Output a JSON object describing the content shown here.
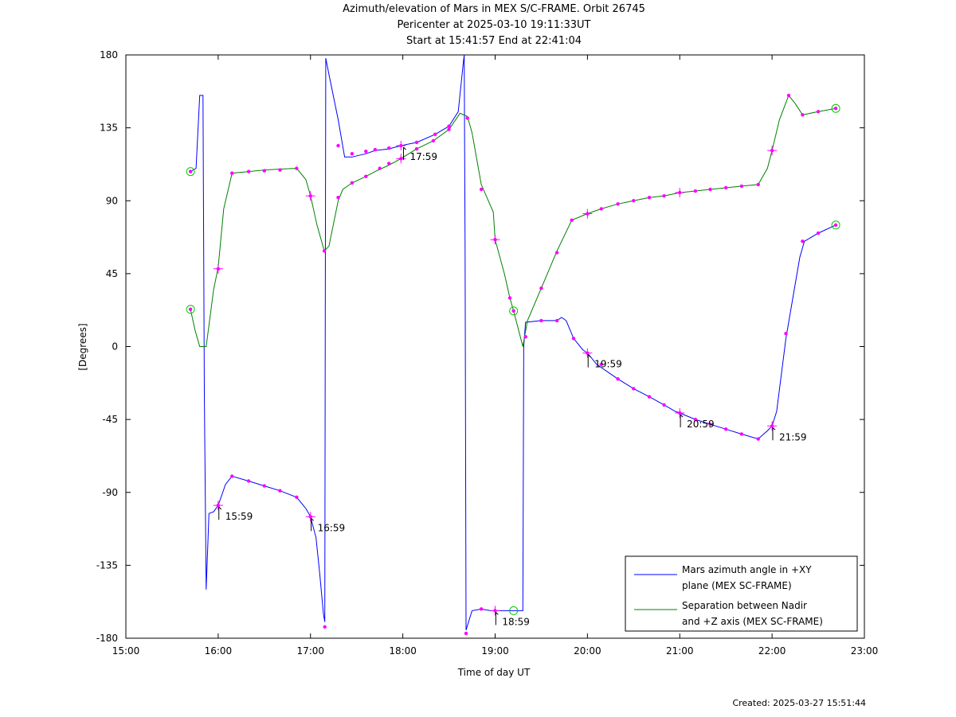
{
  "chart_data": {
    "type": "line",
    "title_lines": [
      "Azimuth/elevation of Mars in MEX S/C-FRAME.  Orbit 26745",
      "Pericenter at 2025-03-10 19:11:33UT",
      "Start at 15:41:57 End at 22:41:04"
    ],
    "xlabel": "Time of day UT",
    "ylabel": "[Degrees]",
    "xlim": [
      15.0,
      23.0
    ],
    "ylim": [
      -180,
      180
    ],
    "x_ticks": [
      "15:00",
      "16:00",
      "17:00",
      "18:00",
      "19:00",
      "20:00",
      "21:00",
      "22:00",
      "23:00"
    ],
    "y_ticks": [
      180,
      135,
      90,
      45,
      0,
      -45,
      -90,
      -135,
      -180
    ],
    "grid": false,
    "legend_position": "bottom-right",
    "series": [
      {
        "name": "Mars azimuth angle in +XY plane (MEX SC-FRAME)",
        "legend_lines": [
          "Mars azimuth angle in +XY",
          "plane (MEX SC-FRAME)"
        ],
        "color": "#0000ff",
        "points": [
          [
            15.7,
            108
          ],
          [
            15.76,
            110
          ],
          [
            15.8,
            155
          ],
          [
            15.835,
            155
          ],
          [
            15.85,
            -30
          ],
          [
            15.87,
            -150
          ],
          [
            15.9,
            -103
          ],
          [
            15.95,
            -102
          ],
          [
            16.0,
            -98
          ],
          [
            16.08,
            -85
          ],
          [
            16.15,
            -80
          ],
          [
            16.33,
            -83
          ],
          [
            16.5,
            -86
          ],
          [
            16.67,
            -89
          ],
          [
            16.85,
            -93
          ],
          [
            16.95,
            -100
          ],
          [
            17.0,
            -105
          ],
          [
            17.06,
            -118
          ],
          [
            17.1,
            -140
          ],
          [
            17.14,
            -165
          ],
          [
            17.155,
            -170
          ],
          [
            17.16,
            20
          ],
          [
            17.165,
            178
          ],
          [
            17.2,
            168
          ],
          [
            17.3,
            140
          ],
          [
            17.37,
            117
          ],
          [
            17.45,
            117
          ],
          [
            17.6,
            119
          ],
          [
            17.7,
            121
          ],
          [
            17.85,
            122
          ],
          [
            17.98,
            124
          ],
          [
            18.15,
            126
          ],
          [
            18.35,
            131
          ],
          [
            18.5,
            136
          ],
          [
            18.6,
            145
          ],
          [
            18.655,
            175
          ],
          [
            18.665,
            180
          ],
          [
            18.675,
            60
          ],
          [
            18.685,
            -175
          ],
          [
            18.75,
            -163
          ],
          [
            18.85,
            -162
          ],
          [
            18.95,
            -163
          ],
          [
            19.0,
            -163
          ],
          [
            19.2,
            -163
          ],
          [
            19.3,
            -163
          ],
          [
            19.31,
            0
          ],
          [
            19.33,
            15
          ],
          [
            19.5,
            16
          ],
          [
            19.67,
            16
          ],
          [
            19.72,
            18
          ],
          [
            19.77,
            16
          ],
          [
            19.85,
            5
          ],
          [
            19.95,
            -2
          ],
          [
            20.0,
            -4
          ],
          [
            20.1,
            -11
          ],
          [
            20.33,
            -20
          ],
          [
            20.5,
            -26
          ],
          [
            20.67,
            -31
          ],
          [
            20.83,
            -36
          ],
          [
            20.95,
            -40
          ],
          [
            21.0,
            -41
          ],
          [
            21.17,
            -45
          ],
          [
            21.33,
            -48
          ],
          [
            21.5,
            -51
          ],
          [
            21.67,
            -54
          ],
          [
            21.85,
            -57
          ],
          [
            21.95,
            -52
          ],
          [
            22.0,
            -49
          ],
          [
            22.05,
            -40
          ],
          [
            22.15,
            5
          ],
          [
            22.3,
            55
          ],
          [
            22.35,
            65
          ],
          [
            22.5,
            70
          ],
          [
            22.69,
            75
          ]
        ]
      },
      {
        "name": "Separation between Nadir and +Z axis (MEX SC-FRAME)",
        "legend_lines": [
          "Separation between Nadir",
          "and +Z axis (MEX SC-FRAME)"
        ],
        "color": "#008000",
        "points": [
          [
            15.7,
            23
          ],
          [
            15.75,
            10
          ],
          [
            15.8,
            0
          ],
          [
            15.87,
            0
          ],
          [
            15.95,
            35
          ],
          [
            16.0,
            49
          ],
          [
            16.06,
            85
          ],
          [
            16.15,
            107
          ],
          [
            16.33,
            108
          ],
          [
            16.5,
            109
          ],
          [
            16.67,
            109.5
          ],
          [
            16.85,
            110
          ],
          [
            16.95,
            103
          ],
          [
            17.0,
            93
          ],
          [
            17.07,
            75
          ],
          [
            17.15,
            59
          ],
          [
            17.2,
            62
          ],
          [
            17.3,
            90
          ],
          [
            17.35,
            97
          ],
          [
            17.45,
            101
          ],
          [
            17.6,
            105
          ],
          [
            17.7,
            108
          ],
          [
            17.85,
            112
          ],
          [
            17.98,
            116
          ],
          [
            18.15,
            122
          ],
          [
            18.33,
            127
          ],
          [
            18.5,
            134
          ],
          [
            18.62,
            144
          ],
          [
            18.7,
            142
          ],
          [
            18.75,
            132
          ],
          [
            18.85,
            100
          ],
          [
            18.98,
            83
          ],
          [
            19.0,
            66
          ],
          [
            19.1,
            45
          ],
          [
            19.16,
            30
          ],
          [
            19.2,
            22
          ],
          [
            19.3,
            0
          ],
          [
            19.35,
            16
          ],
          [
            19.5,
            36
          ],
          [
            19.67,
            59
          ],
          [
            19.83,
            78
          ],
          [
            20.0,
            82
          ],
          [
            20.15,
            85
          ],
          [
            20.33,
            88
          ],
          [
            20.5,
            90
          ],
          [
            20.67,
            92
          ],
          [
            20.83,
            93
          ],
          [
            21.0,
            95
          ],
          [
            21.17,
            96
          ],
          [
            21.33,
            97
          ],
          [
            21.5,
            98
          ],
          [
            21.67,
            99
          ],
          [
            21.85,
            100
          ],
          [
            21.95,
            110
          ],
          [
            22.0,
            121
          ],
          [
            22.08,
            140
          ],
          [
            22.18,
            155
          ],
          [
            22.25,
            150
          ],
          [
            22.33,
            143
          ],
          [
            22.5,
            145
          ],
          [
            22.69,
            147
          ]
        ]
      }
    ],
    "markers": [
      [
        15.7,
        108
      ],
      [
        16.0,
        -98
      ],
      [
        16.15,
        -80
      ],
      [
        16.33,
        -83
      ],
      [
        16.5,
        -86
      ],
      [
        16.67,
        -89
      ],
      [
        16.85,
        -93
      ],
      [
        17.0,
        -105
      ],
      [
        17.155,
        -173
      ],
      [
        17.3,
        124
      ],
      [
        17.45,
        119
      ],
      [
        17.6,
        120.5
      ],
      [
        17.7,
        121.5
      ],
      [
        17.85,
        122.5
      ],
      [
        17.98,
        124
      ],
      [
        18.15,
        126
      ],
      [
        18.35,
        131
      ],
      [
        18.5,
        136
      ],
      [
        18.685,
        -177
      ],
      [
        18.85,
        -162
      ],
      [
        19.0,
        -163
      ],
      [
        19.33,
        6
      ],
      [
        19.5,
        16
      ],
      [
        19.67,
        16
      ],
      [
        19.85,
        5
      ],
      [
        20.0,
        -4
      ],
      [
        20.15,
        -11
      ],
      [
        20.33,
        -20
      ],
      [
        20.5,
        -26
      ],
      [
        20.67,
        -31
      ],
      [
        20.83,
        -36
      ],
      [
        21.0,
        -41
      ],
      [
        21.17,
        -45
      ],
      [
        21.33,
        -48
      ],
      [
        21.5,
        -51
      ],
      [
        21.67,
        -54
      ],
      [
        21.85,
        -57
      ],
      [
        22.0,
        -49
      ],
      [
        22.15,
        8
      ],
      [
        22.33,
        65
      ],
      [
        22.5,
        70
      ],
      [
        22.69,
        75
      ],
      [
        15.7,
        23
      ],
      [
        16.0,
        48
      ],
      [
        16.15,
        107
      ],
      [
        16.33,
        108
      ],
      [
        16.5,
        108.5
      ],
      [
        16.67,
        109
      ],
      [
        16.85,
        110
      ],
      [
        17.0,
        93
      ],
      [
        17.15,
        59
      ],
      [
        17.3,
        92
      ],
      [
        17.45,
        101
      ],
      [
        17.6,
        105
      ],
      [
        17.75,
        110
      ],
      [
        17.85,
        113
      ],
      [
        17.98,
        116
      ],
      [
        18.15,
        122
      ],
      [
        18.33,
        127
      ],
      [
        18.5,
        134
      ],
      [
        18.7,
        141
      ],
      [
        18.85,
        97
      ],
      [
        19.0,
        66
      ],
      [
        19.16,
        30
      ],
      [
        19.2,
        22
      ],
      [
        19.5,
        36
      ],
      [
        19.67,
        58
      ],
      [
        19.83,
        78
      ],
      [
        20.0,
        82
      ],
      [
        20.15,
        85
      ],
      [
        20.33,
        88
      ],
      [
        20.5,
        90
      ],
      [
        20.67,
        92
      ],
      [
        20.83,
        93
      ],
      [
        21.0,
        95
      ],
      [
        21.17,
        96
      ],
      [
        21.33,
        97
      ],
      [
        21.5,
        98
      ],
      [
        21.67,
        99
      ],
      [
        21.85,
        100
      ],
      [
        22.0,
        121
      ],
      [
        22.18,
        155
      ],
      [
        22.33,
        143
      ],
      [
        22.5,
        145
      ],
      [
        22.69,
        147
      ]
    ],
    "cross_markers": [
      [
        16.0,
        -98
      ],
      [
        17.0,
        -105
      ],
      [
        19.0,
        -163
      ],
      [
        20.0,
        -4
      ],
      [
        21.0,
        -41
      ],
      [
        22.0,
        -49
      ],
      [
        16.0,
        48
      ],
      [
        17.0,
        93
      ],
      [
        17.98,
        124
      ],
      [
        17.98,
        116
      ],
      [
        19.0,
        66
      ],
      [
        20.0,
        82
      ],
      [
        21.0,
        95
      ],
      [
        22.0,
        121
      ]
    ],
    "circle_markers": [
      [
        15.7,
        108
      ],
      [
        15.7,
        23
      ],
      [
        19.2,
        -163
      ],
      [
        19.2,
        22
      ],
      [
        22.69,
        75
      ],
      [
        22.69,
        147
      ]
    ],
    "annotations": [
      {
        "text": "15:59",
        "x": 15.99,
        "y": -98,
        "dir": "below"
      },
      {
        "text": "16:59",
        "x": 16.99,
        "y": -105,
        "dir": "below"
      },
      {
        "text": "17:59",
        "x": 17.99,
        "y": 124,
        "dir": "below"
      },
      {
        "text": "18:59",
        "x": 18.99,
        "y": -163,
        "dir": "below"
      },
      {
        "text": "19:59",
        "x": 19.99,
        "y": -4,
        "dir": "below"
      },
      {
        "text": "20:59",
        "x": 20.99,
        "y": -41,
        "dir": "below"
      },
      {
        "text": "21:59",
        "x": 21.99,
        "y": -49,
        "dir": "below"
      }
    ]
  },
  "footer": {
    "created": "Created: 2025-03-27 15:51:44"
  }
}
